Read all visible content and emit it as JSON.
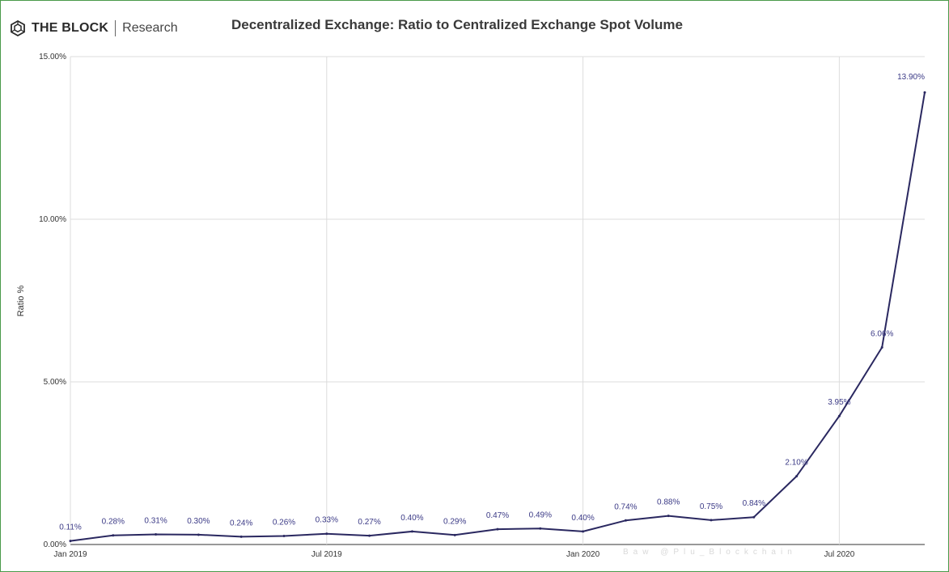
{
  "brand": {
    "name": "THE BLOCK",
    "sub": "Research"
  },
  "watermark": "Baw @Plu_Blockchain",
  "colors": {
    "line": "#2a2860",
    "label": "#3b3a86",
    "grid": "#dcdcdc",
    "axis": "#333333"
  },
  "chart_data": {
    "type": "line",
    "title": "Decentralized Exchange: Ratio to Centralized Exchange Spot Volume",
    "ylabel": "Ratio %",
    "xlabel": "",
    "ylim": [
      0,
      15
    ],
    "yticks": [
      "0.00%",
      "5.00%",
      "10.00%",
      "15.00%"
    ],
    "ytick_values": [
      0,
      5,
      10,
      15
    ],
    "xticks": [
      "Jan 2019",
      "Jul 2019",
      "Jan 2020",
      "Jul 2020"
    ],
    "xtick_index": [
      0,
      6,
      12,
      18
    ],
    "grid": true,
    "x": [
      "Jan 2019",
      "Feb 2019",
      "Mar 2019",
      "Apr 2019",
      "May 2019",
      "Jun 2019",
      "Jul 2019",
      "Aug 2019",
      "Sep 2019",
      "Oct 2019",
      "Nov 2019",
      "Dec 2019",
      "Jan 2020",
      "Feb 2020",
      "Mar 2020",
      "Apr 2020",
      "May 2020",
      "Jun 2020",
      "Jul 2020",
      "Aug 2020",
      "Sep 2020"
    ],
    "values": [
      0.11,
      0.28,
      0.31,
      0.3,
      0.24,
      0.26,
      0.33,
      0.27,
      0.4,
      0.29,
      0.47,
      0.49,
      0.4,
      0.74,
      0.88,
      0.75,
      0.84,
      2.1,
      3.95,
      6.06,
      13.9
    ],
    "data_labels": [
      "0.11%",
      "0.28%",
      "0.31%",
      "0.30%",
      "0.24%",
      "0.26%",
      "0.33%",
      "0.27%",
      "0.40%",
      "0.29%",
      "0.47%",
      "0.49%",
      "0.40%",
      "0.74%",
      "0.88%",
      "0.75%",
      "0.84%",
      "2.10%",
      "3.95%",
      "6.06%",
      "13.90%"
    ]
  }
}
